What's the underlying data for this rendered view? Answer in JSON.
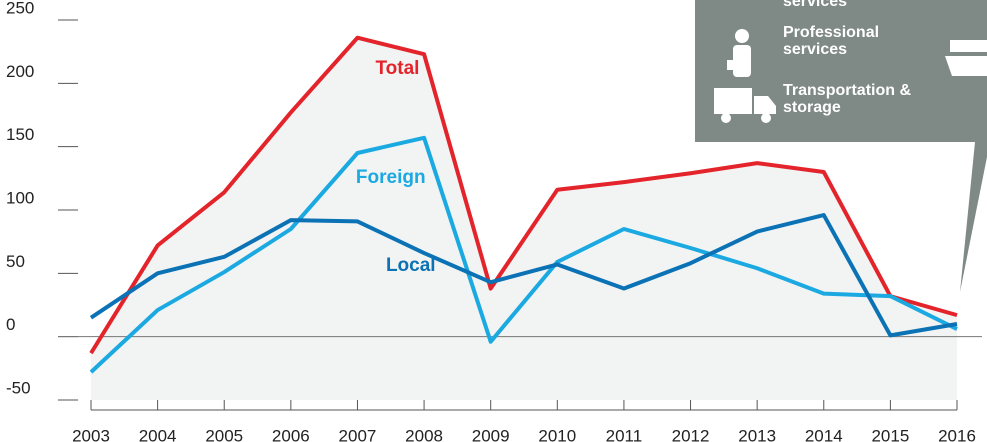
{
  "chart_data": {
    "type": "line",
    "x": [
      2003,
      2004,
      2005,
      2006,
      2007,
      2008,
      2009,
      2010,
      2011,
      2012,
      2013,
      2014,
      2015,
      2016
    ],
    "series": [
      {
        "name": "Total",
        "color": "#e3242b",
        "values": [
          -13,
          72,
          114,
          177,
          236,
          223,
          38,
          116,
          122,
          129,
          137,
          130,
          32,
          17
        ]
      },
      {
        "name": "Foreign",
        "color": "#1ba9e1",
        "values": [
          -28,
          21,
          51,
          85,
          145,
          157,
          -4,
          59,
          85,
          70,
          54,
          34,
          32,
          6
        ]
      },
      {
        "name": "Local",
        "color": "#0a72b5",
        "values": [
          15,
          50,
          63,
          92,
          91,
          66,
          43,
          57,
          38,
          58,
          83,
          96,
          1,
          10
        ]
      }
    ],
    "xlim": [
      2003,
      2016
    ],
    "ylim": [
      -50,
      250
    ],
    "yticks": [
      -50,
      0,
      50,
      100,
      150,
      200,
      250
    ],
    "annotations": [
      "services",
      "Professional services",
      "Transportation & storage"
    ]
  }
}
